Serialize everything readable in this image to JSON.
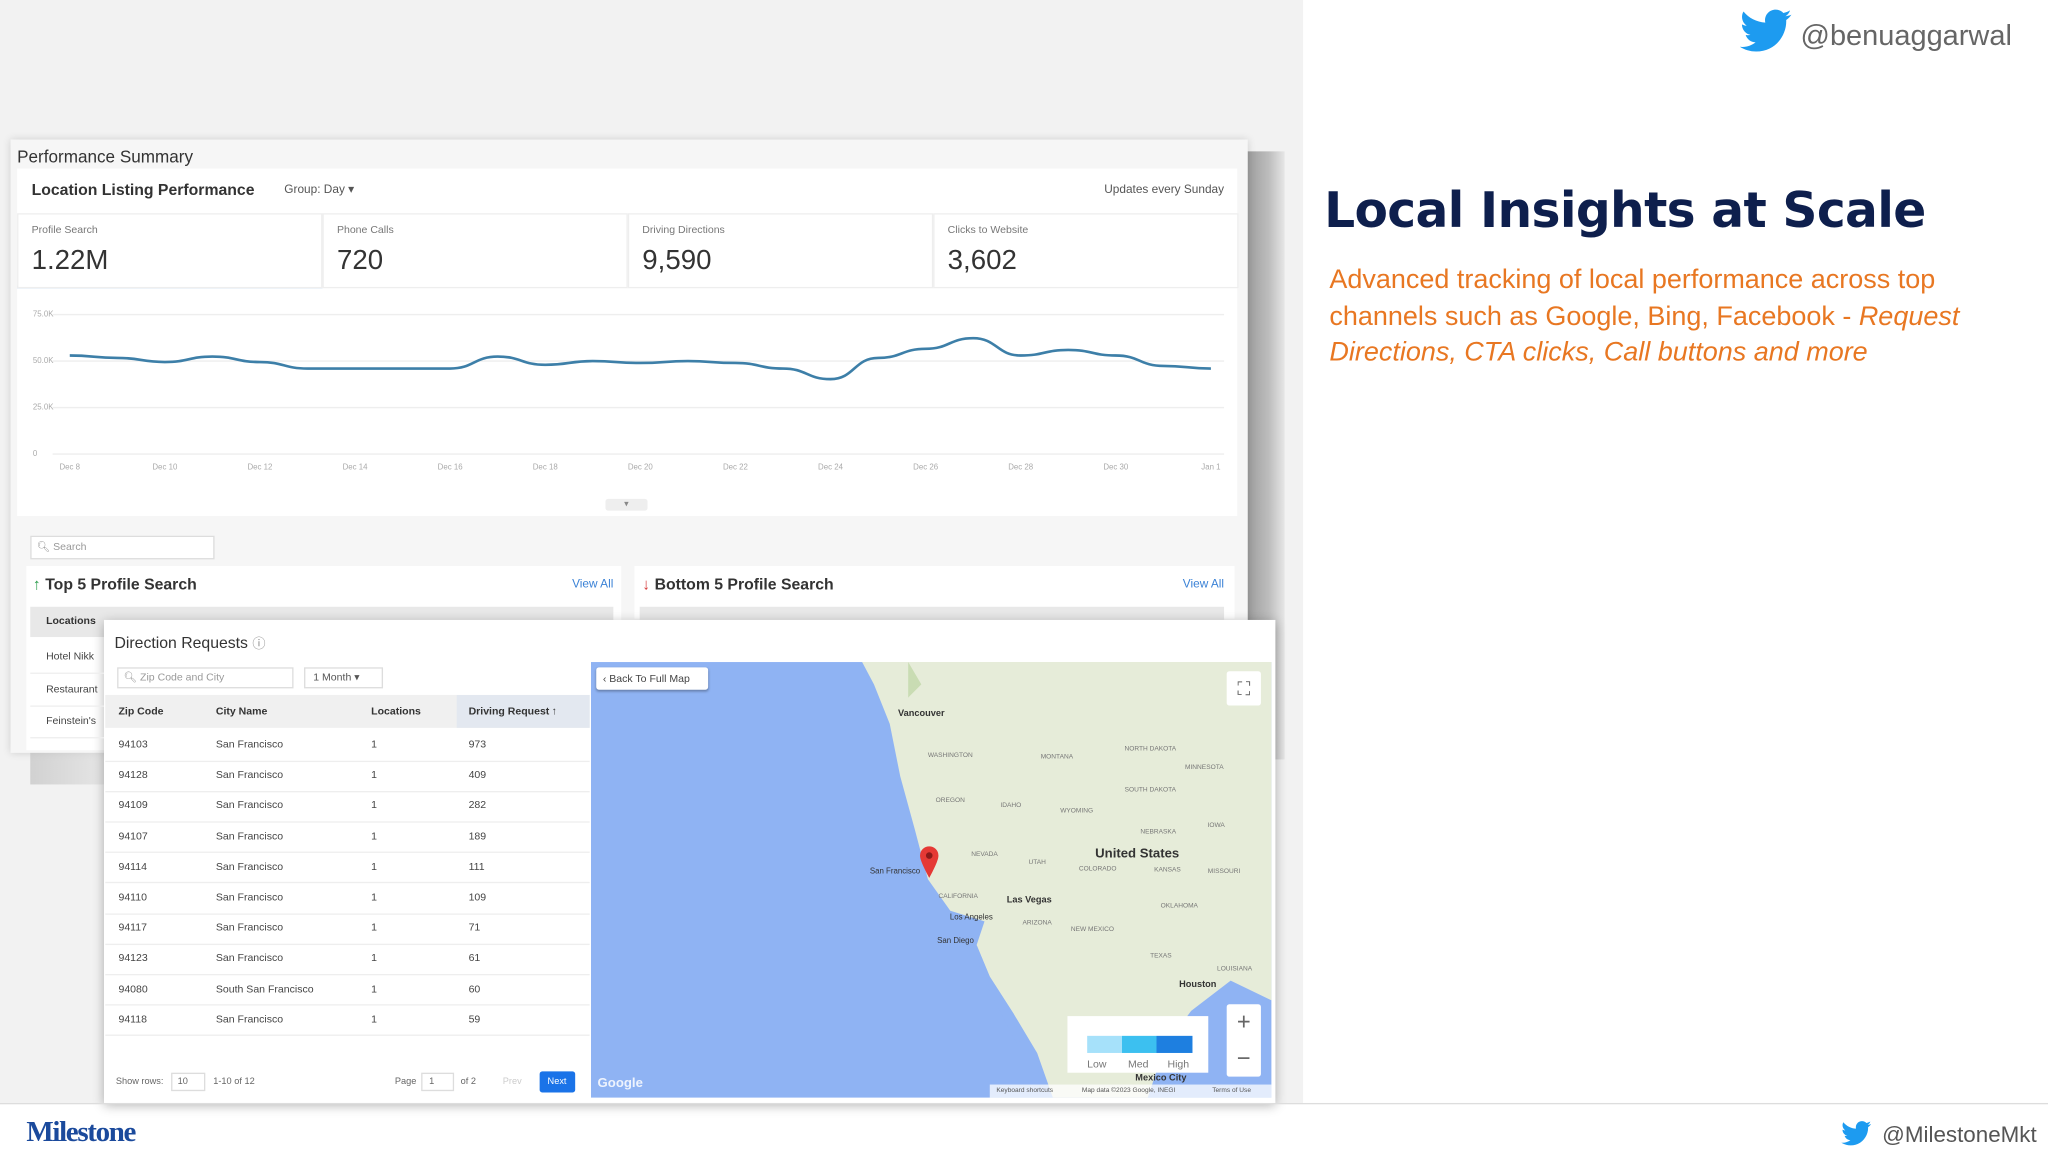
{
  "header": {
    "handle": "@benuaggarwal",
    "title": "Local Insights at Scale",
    "subtitle": "Advanced tracking of local performance across top channels such as Google, Bing, Facebook - ",
    "subtitle_italic": "Request Directions, CTA clicks, Call buttons and more"
  },
  "dashboard": {
    "section_title": "Performance Summary",
    "card_title": "Location Listing Performance",
    "group": "Group: Day",
    "updates": "Updates every Sunday",
    "metrics": [
      {
        "label": "Profile Search",
        "value": "1.22M"
      },
      {
        "label": "Phone Calls",
        "value": "720"
      },
      {
        "label": "Driving Directions",
        "value": "9,590"
      },
      {
        "label": "Clicks to Website",
        "value": "3,602"
      }
    ],
    "search": "Search",
    "top": {
      "title": "Top 5 Profile Search",
      "view_all": "View All",
      "column": "Locations",
      "rows": [
        "Hotel Nikk",
        "Restaurant",
        "Feinstein's"
      ]
    },
    "bottom": {
      "title": "Bottom 5 Profile Search",
      "view_all": "View All"
    }
  },
  "chart_data": {
    "type": "line",
    "color": "#3d7fa8",
    "categories": [
      "Dec 8",
      null,
      "Dec 10",
      null,
      "Dec 12",
      null,
      "Dec 14",
      null,
      "Dec 16",
      null,
      "Dec 18",
      null,
      "Dec 20",
      null,
      "Dec 22",
      null,
      "Dec 24",
      null,
      "Dec 26",
      null,
      "Dec 28",
      null,
      "Dec 30",
      null,
      "Jan 1"
    ],
    "values": [
      53000,
      51700,
      49500,
      52400,
      49500,
      46000,
      46000,
      46000,
      46000,
      52400,
      48000,
      50000,
      49000,
      50000,
      49000,
      46000,
      40300,
      51700,
      56600,
      62300,
      53000,
      56000,
      53000,
      47400,
      46000
    ],
    "ylim": [
      0,
      75000
    ],
    "yticks": [
      {
        "value": 0,
        "label": "0"
      },
      {
        "value": 25000,
        "label": "25.0K"
      },
      {
        "value": 50000,
        "label": "50.0K"
      },
      {
        "value": 75000,
        "label": "75.0K"
      }
    ],
    "grid": true
  },
  "direction_requests": {
    "title": "Direction Requests",
    "search": "Zip Code and City",
    "period": "1 Month",
    "columns": [
      "Zip Code",
      "City Name",
      "Locations",
      "Driving Request"
    ],
    "rows": [
      [
        "94103",
        "San Francisco",
        "1",
        "973"
      ],
      [
        "94128",
        "San Francisco",
        "1",
        "409"
      ],
      [
        "94109",
        "San Francisco",
        "1",
        "282"
      ],
      [
        "94107",
        "San Francisco",
        "1",
        "189"
      ],
      [
        "94114",
        "San Francisco",
        "1",
        "111"
      ],
      [
        "94110",
        "San Francisco",
        "1",
        "109"
      ],
      [
        "94117",
        "San Francisco",
        "1",
        "71"
      ],
      [
        "94123",
        "San Francisco",
        "1",
        "61"
      ],
      [
        "94080",
        "South San Francisco",
        "1",
        "60"
      ],
      [
        "94118",
        "San Francisco",
        "1",
        "59"
      ]
    ],
    "footer": {
      "show_rows": "Show rows:",
      "rows_value": "10",
      "range": "1-10 of 12",
      "page": "Page",
      "page_value": "1",
      "of": "of 2",
      "prev": "Prev",
      "next": "Next"
    }
  },
  "map": {
    "back": "Back To Full Map",
    "labels": [
      "Vancouver",
      "WASHINGTON",
      "MONTANA",
      "NORTH DAKOTA",
      "MINNESOTA",
      "OREGON",
      "IDAHO",
      "WYOMING",
      "SOUTH DAKOTA",
      "NEBRASKA",
      "IOWA",
      "NEVADA",
      "UTAH",
      "COLORADO",
      "KANSAS",
      "MISSOURI",
      "United States",
      "San Francisco",
      "CALIFORNIA",
      "Las Vegas",
      "Los Angeles",
      "ARIZONA",
      "NEW MEXICO",
      "OKLAHOMA",
      "San Diego",
      "TEXAS",
      "Houston",
      "LOUISIANA",
      "Mexico City"
    ],
    "legend": [
      "Low",
      "Med",
      "High"
    ],
    "google": "Google",
    "attribution": [
      "Keyboard shortcuts",
      "Map data ©2023 Google, INEGI",
      "Terms of Use"
    ]
  },
  "footer": {
    "logo": "Milestone",
    "handle": "@MilestoneMkt"
  }
}
